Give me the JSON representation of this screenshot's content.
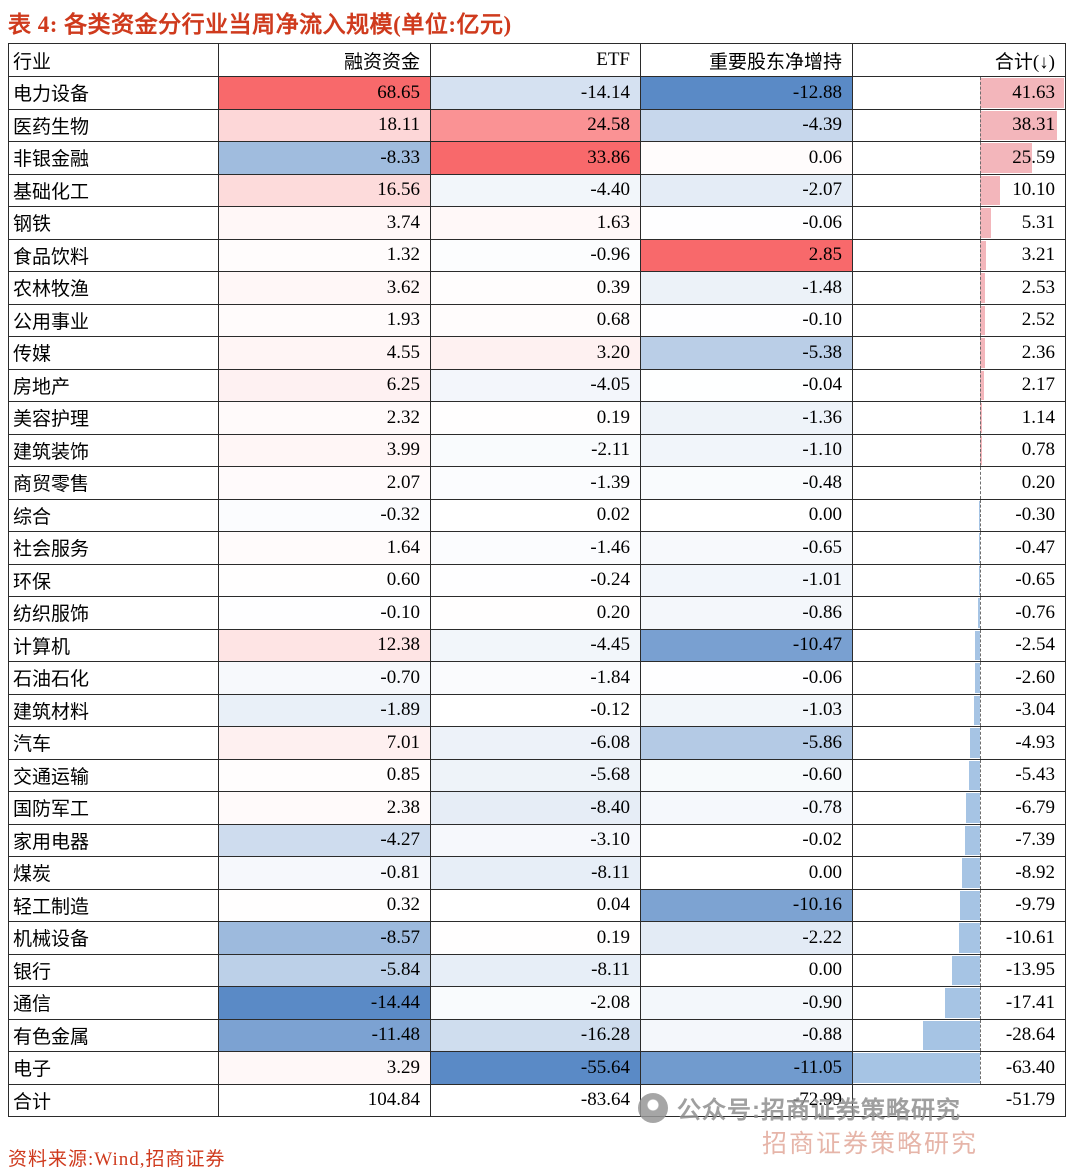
{
  "title": "表 4:  各类资金分行业当周净流入规模(单位:亿元)",
  "footer": {
    "source": "资料来源:Wind,招商证券"
  },
  "watermark": {
    "label": "公众号:招商证券策略研究",
    "shadow": "招商证券策略研究"
  },
  "colors": {
    "title_red": "#cf3a1d",
    "heat_max_red": "#f8696b",
    "heat_min_blue": "#5a8ac6",
    "bar_positive": "#f3b6bb",
    "bar_negative": "#a6c4e4",
    "grid": "#2b2b2b"
  },
  "chart_data": {
    "type": "table",
    "title": "各类资金分行业当周净流入规模",
    "unit": "亿元",
    "columns": [
      "行业",
      "融资资金",
      "ETF",
      "重要股东净增持",
      "合计(↓)"
    ],
    "rows": [
      [
        "电力设备",
        68.65,
        -14.14,
        -12.88,
        41.63
      ],
      [
        "医药生物",
        18.11,
        24.58,
        -4.39,
        38.31
      ],
      [
        "非银金融",
        -8.33,
        33.86,
        0.06,
        25.59
      ],
      [
        "基础化工",
        16.56,
        -4.4,
        -2.07,
        10.1
      ],
      [
        "钢铁",
        3.74,
        1.63,
        -0.06,
        5.31
      ],
      [
        "食品饮料",
        1.32,
        -0.96,
        2.85,
        3.21
      ],
      [
        "农林牧渔",
        3.62,
        0.39,
        -1.48,
        2.53
      ],
      [
        "公用事业",
        1.93,
        0.68,
        -0.1,
        2.52
      ],
      [
        "传媒",
        4.55,
        3.2,
        -5.38,
        2.36
      ],
      [
        "房地产",
        6.25,
        -4.05,
        -0.04,
        2.17
      ],
      [
        "美容护理",
        2.32,
        0.19,
        -1.36,
        1.14
      ],
      [
        "建筑装饰",
        3.99,
        -2.11,
        -1.1,
        0.78
      ],
      [
        "商贸零售",
        2.07,
        -1.39,
        -0.48,
        0.2
      ],
      [
        "综合",
        -0.32,
        0.02,
        0.0,
        -0.3
      ],
      [
        "社会服务",
        1.64,
        -1.46,
        -0.65,
        -0.47
      ],
      [
        "环保",
        0.6,
        -0.24,
        -1.01,
        -0.65
      ],
      [
        "纺织服饰",
        -0.1,
        0.2,
        -0.86,
        -0.76
      ],
      [
        "计算机",
        12.38,
        -4.45,
        -10.47,
        -2.54
      ],
      [
        "石油石化",
        -0.7,
        -1.84,
        -0.06,
        -2.6
      ],
      [
        "建筑材料",
        -1.89,
        -0.12,
        -1.03,
        -3.04
      ],
      [
        "汽车",
        7.01,
        -6.08,
        -5.86,
        -4.93
      ],
      [
        "交通运输",
        0.85,
        -5.68,
        -0.6,
        -5.43
      ],
      [
        "国防军工",
        2.38,
        -8.4,
        -0.78,
        -6.79
      ],
      [
        "家用电器",
        -4.27,
        -3.1,
        -0.02,
        -7.39
      ],
      [
        "煤炭",
        -0.81,
        -8.11,
        0.0,
        -8.92
      ],
      [
        "轻工制造",
        0.32,
        0.04,
        -10.16,
        -9.79
      ],
      [
        "机械设备",
        -8.57,
        0.19,
        -2.22,
        -10.61
      ],
      [
        "银行",
        -5.84,
        -8.11,
        0.0,
        -13.95
      ],
      [
        "通信",
        -14.44,
        -2.08,
        -0.9,
        -17.41
      ],
      [
        "有色金属",
        -11.48,
        -16.28,
        -0.88,
        -28.64
      ],
      [
        "电子",
        3.29,
        -55.64,
        -11.05,
        -63.4
      ]
    ],
    "total_row": [
      "合计",
      104.84,
      -83.64,
      -72.99,
      -51.79
    ],
    "formatting": {
      "heatmap": "per-column red(max) / white(0) / blue(min) on 融资资金, ETF, 重要股东净增持",
      "data_bars": "合计 column: pink bars right of dashed axis for positive, blue bars left for negative"
    }
  }
}
